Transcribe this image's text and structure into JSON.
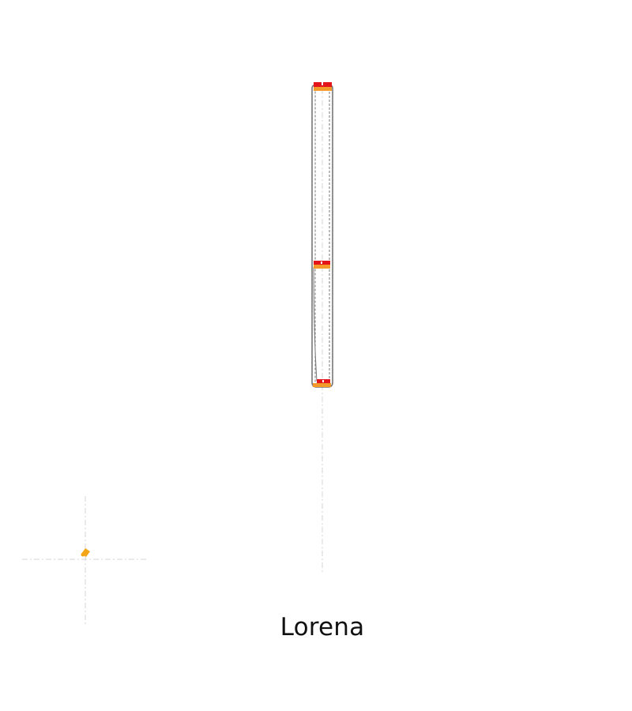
{
  "caption": "Lorena",
  "colors": {
    "outline": "#6e6e6e",
    "cap_top": "#e4141b",
    "cap_bottom": "#f39a2b",
    "point": "#f2a516",
    "guide": "#cfcfcf"
  }
}
